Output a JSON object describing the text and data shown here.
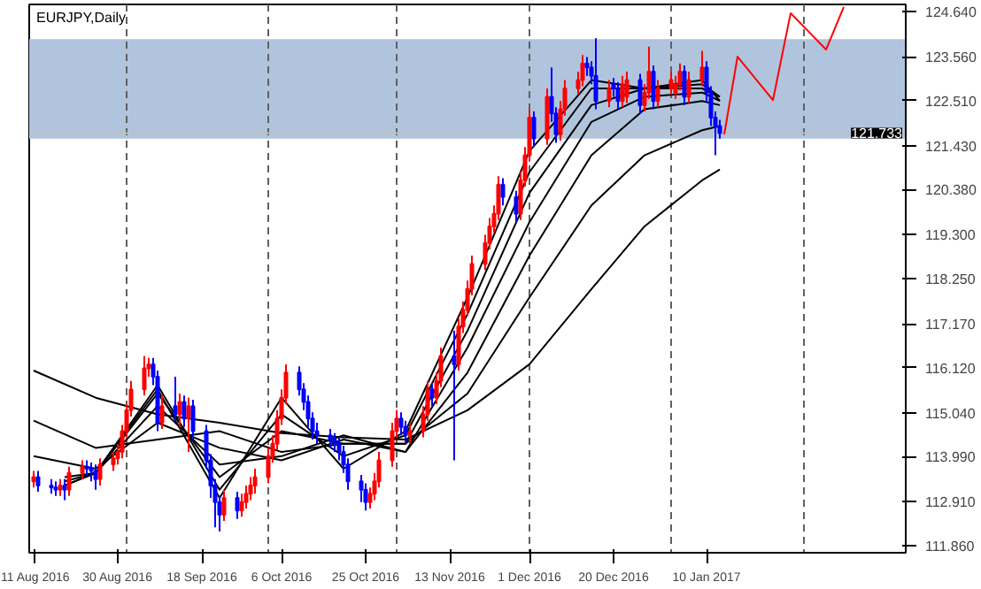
{
  "chart_data": {
    "type": "candlestick",
    "title": "EURJPY,Daily",
    "colors": [
      "#ff0000",
      "#0000ff",
      "#0000ff",
      "#0000ff",
      "#ff0000",
      "#0000ff",
      "#ff0000",
      "#ff0000",
      "#0000ff",
      "#0000ff",
      "#0000ff",
      "#ff0000",
      "#ff0000",
      "#ff0000",
      "#ff0000",
      "#ff0000",
      "#ff0000",
      "#ff0000",
      "#ff0000",
      "#0000ff",
      "#0000ff",
      "#ff0000",
      "#0000ff",
      "#ff0000",
      "#0000ff",
      "#ff0000",
      "#0000ff",
      "#0000ff",
      "#0000ff",
      "#0000ff",
      "#0000ff",
      "#ff0000",
      "#0000ff",
      "#ff0000",
      "#ff0000",
      "#ff0000",
      "#ff0000",
      "#ff0000",
      "#ff0000",
      "#ff0000",
      "#ff0000",
      "#ff0000",
      "#0000ff",
      "#0000ff",
      "#0000ff",
      "#0000ff",
      "#0000ff",
      "#0000ff",
      "#0000ff",
      "#0000ff",
      "#0000ff",
      "#0000ff",
      "#0000ff",
      "#0000ff",
      "#ff0000",
      "#ff0000",
      "#ff0000",
      "#ff0000",
      "#ff0000",
      "#0000ff",
      "#0000ff",
      "#ff0000",
      "#ff0000",
      "#ff0000",
      "#0000ff",
      "#ff0000",
      "#ff0000",
      "#0000ff",
      "#ff0000",
      "#ff0000",
      "#ff0000",
      "#ff0000",
      "#ff0000",
      "#ff0000",
      "#ff0000",
      "#ff0000",
      "#0000ff",
      "#0000ff",
      "#ff0000",
      "#ff0000",
      "#ff0000",
      "#0000ff",
      "#ff0000",
      "#0000ff",
      "#0000ff",
      "#ff0000",
      "#ff0000",
      "#ff0000",
      "#ff0000",
      "#0000ff",
      "#0000ff",
      "#0000ff",
      "#ff0000",
      "#0000ff",
      "#0000ff",
      "#ff0000",
      "#ff0000",
      "#0000ff",
      "#ff0000",
      "#ff0000",
      "#0000ff",
      "#ff0000",
      "#ff0000",
      "#ff0000",
      "#ff0000",
      "#0000ff",
      "#ff0000",
      "#ff0000",
      "#0000ff",
      "#0000ff",
      "#0000ff",
      "#0000ff"
    ],
    "x": [
      "2016-08-11",
      "2016-08-12",
      "2016-08-15",
      "2016-08-16",
      "2016-08-17",
      "2016-08-18",
      "2016-08-19",
      "2016-08-22",
      "2016-08-23",
      "2016-08-24",
      "2016-08-25",
      "2016-08-26",
      "2016-08-29",
      "2016-08-30",
      "2016-08-31",
      "2016-09-01",
      "2016-09-02",
      "2016-09-05",
      "2016-09-06",
      "2016-09-07",
      "2016-09-08",
      "2016-09-09",
      "2016-09-12",
      "2016-09-13",
      "2016-09-14",
      "2016-09-15",
      "2016-09-16",
      "2016-09-19",
      "2016-09-20",
      "2016-09-21",
      "2016-09-22",
      "2016-09-23",
      "2016-09-26",
      "2016-09-27",
      "2016-09-28",
      "2016-09-29",
      "2016-09-30",
      "2016-10-03",
      "2016-10-04",
      "2016-10-05",
      "2016-10-06",
      "2016-10-07",
      "2016-10-10",
      "2016-10-11",
      "2016-10-12",
      "2016-10-13",
      "2016-10-14",
      "2016-10-17",
      "2016-10-18",
      "2016-10-19",
      "2016-10-20",
      "2016-10-21",
      "2016-10-24",
      "2016-10-25",
      "2016-10-26",
      "2016-10-27",
      "2016-10-28",
      "2016-10-31",
      "2016-11-01",
      "2016-11-02",
      "2016-11-03",
      "2016-11-04",
      "2016-11-07",
      "2016-11-08",
      "2016-11-09",
      "2016-11-10",
      "2016-11-11",
      "2016-11-14",
      "2016-11-15",
      "2016-11-16",
      "2016-11-17",
      "2016-11-18",
      "2016-11-21",
      "2016-11-22",
      "2016-11-23",
      "2016-11-24",
      "2016-11-25",
      "2016-11-28",
      "2016-11-29",
      "2016-11-30",
      "2016-12-01",
      "2016-12-02",
      "2016-12-05",
      "2016-12-06",
      "2016-12-07",
      "2016-12-08",
      "2016-12-09",
      "2016-12-12",
      "2016-12-13",
      "2016-12-14",
      "2016-12-15",
      "2016-12-16",
      "2016-12-19",
      "2016-12-20",
      "2016-12-21",
      "2016-12-22",
      "2016-12-23",
      "2016-12-26",
      "2016-12-27",
      "2016-12-28",
      "2016-12-29",
      "2016-12-30",
      "2017-01-02",
      "2017-01-03",
      "2017-01-04",
      "2017-01-05",
      "2017-01-06",
      "2017-01-09",
      "2017-01-10",
      "2017-01-11",
      "2017-01-12",
      "2017-01-13"
    ],
    "ohlc": [
      [
        113.4,
        113.65,
        113.25,
        113.5
      ],
      [
        113.5,
        113.65,
        113.15,
        113.3
      ],
      [
        113.3,
        113.45,
        113.1,
        113.25
      ],
      [
        113.25,
        113.4,
        113.05,
        113.2
      ],
      [
        113.2,
        113.45,
        113.05,
        113.3
      ],
      [
        113.3,
        113.45,
        112.95,
        113.2
      ],
      [
        113.2,
        113.75,
        113.05,
        113.6
      ],
      [
        113.6,
        113.9,
        113.45,
        113.75
      ],
      [
        113.75,
        113.9,
        113.55,
        113.7
      ],
      [
        113.7,
        113.85,
        113.4,
        113.65
      ],
      [
        113.65,
        113.8,
        113.2,
        113.45
      ],
      [
        113.45,
        113.95,
        113.3,
        113.8
      ],
      [
        113.8,
        114.1,
        113.65,
        113.95
      ],
      [
        113.95,
        114.3,
        113.8,
        114.1
      ],
      [
        114.1,
        114.75,
        113.95,
        114.6
      ],
      [
        114.6,
        115.25,
        114.45,
        115.1
      ],
      [
        115.1,
        115.8,
        114.95,
        115.6
      ],
      [
        115.6,
        116.4,
        115.45,
        116.1
      ],
      [
        116.1,
        116.35,
        115.9,
        116.2
      ],
      [
        116.2,
        116.35,
        115.7,
        115.9
      ],
      [
        115.9,
        116.05,
        114.6,
        114.8
      ],
      [
        114.8,
        115.45,
        114.65,
        115.2
      ],
      [
        115.2,
        115.9,
        114.85,
        115.0
      ],
      [
        115.0,
        115.5,
        114.7,
        115.3
      ],
      [
        115.3,
        115.45,
        114.7,
        114.9
      ],
      [
        114.9,
        115.4,
        114.1,
        115.2
      ],
      [
        115.2,
        115.35,
        114.4,
        114.6
      ],
      [
        114.6,
        114.75,
        113.7,
        113.9
      ],
      [
        113.9,
        114.05,
        113.0,
        113.3
      ],
      [
        113.3,
        113.45,
        112.3,
        112.9
      ],
      [
        112.9,
        113.05,
        112.2,
        112.6
      ],
      [
        112.6,
        113.2,
        112.45,
        113.0
      ],
      [
        113.0,
        113.15,
        112.5,
        112.7
      ],
      [
        112.7,
        113.1,
        112.55,
        112.9
      ],
      [
        112.9,
        113.3,
        112.75,
        113.1
      ],
      [
        113.1,
        113.5,
        112.95,
        113.3
      ],
      [
        113.3,
        113.7,
        113.1,
        113.5
      ],
      [
        113.5,
        114.2,
        113.35,
        114.0
      ],
      [
        114.0,
        114.5,
        113.85,
        114.3
      ],
      [
        114.3,
        115.1,
        114.15,
        114.9
      ],
      [
        114.9,
        115.6,
        114.75,
        115.4
      ],
      [
        115.4,
        116.2,
        115.25,
        116.0
      ],
      [
        116.0,
        116.15,
        115.45,
        115.6
      ],
      [
        115.6,
        115.75,
        115.1,
        115.3
      ],
      [
        115.3,
        115.45,
        114.7,
        114.9
      ],
      [
        114.9,
        115.05,
        114.4,
        114.6
      ],
      [
        114.6,
        114.8,
        114.3,
        114.5
      ],
      [
        114.5,
        114.65,
        114.2,
        114.4
      ],
      [
        114.4,
        114.55,
        114.1,
        114.3
      ],
      [
        114.3,
        114.45,
        113.9,
        114.1
      ],
      [
        114.1,
        114.25,
        113.6,
        113.8
      ],
      [
        113.8,
        113.95,
        113.2,
        113.4
      ],
      [
        113.4,
        113.55,
        112.9,
        113.2
      ],
      [
        113.2,
        113.35,
        112.7,
        112.9
      ],
      [
        112.9,
        113.25,
        112.75,
        113.1
      ],
      [
        113.1,
        113.6,
        112.95,
        113.4
      ],
      [
        113.4,
        114.1,
        113.25,
        113.9
      ],
      [
        113.9,
        114.8,
        113.75,
        114.6
      ],
      [
        114.6,
        115.1,
        114.45,
        114.9
      ],
      [
        114.9,
        115.05,
        114.5,
        114.7
      ],
      [
        114.7,
        114.85,
        114.3,
        114.5
      ],
      [
        114.5,
        114.8,
        114.3,
        114.6
      ],
      [
        114.6,
        115.2,
        114.45,
        115.0
      ],
      [
        115.0,
        115.8,
        114.85,
        115.6
      ],
      [
        115.6,
        115.75,
        115.2,
        115.4
      ],
      [
        115.4,
        116.0,
        115.25,
        115.8
      ],
      [
        115.8,
        116.6,
        115.65,
        116.4
      ],
      [
        116.4,
        117.0,
        113.9,
        116.2
      ],
      [
        116.2,
        117.3,
        116.05,
        117.1
      ],
      [
        117.1,
        117.7,
        116.95,
        117.5
      ],
      [
        117.5,
        118.2,
        117.35,
        118.0
      ],
      [
        118.0,
        118.8,
        117.85,
        118.6
      ],
      [
        118.6,
        119.3,
        118.45,
        119.1
      ],
      [
        119.1,
        119.7,
        118.95,
        119.5
      ],
      [
        119.5,
        120.0,
        119.35,
        119.8
      ],
      [
        119.8,
        120.7,
        119.65,
        120.5
      ],
      [
        120.5,
        120.65,
        120.0,
        120.2
      ],
      [
        120.2,
        120.35,
        119.6,
        119.8
      ],
      [
        119.8,
        120.8,
        119.65,
        120.6
      ],
      [
        120.6,
        121.4,
        120.45,
        121.2
      ],
      [
        121.2,
        122.3,
        121.05,
        122.1
      ],
      [
        122.1,
        122.25,
        121.4,
        121.6
      ],
      [
        121.6,
        122.8,
        121.45,
        122.6
      ],
      [
        122.6,
        123.3,
        122.0,
        122.2
      ],
      [
        122.2,
        122.35,
        121.5,
        121.7
      ],
      [
        121.7,
        122.5,
        121.55,
        122.3
      ],
      [
        122.3,
        123.0,
        122.15,
        122.8
      ],
      [
        122.8,
        123.2,
        122.65,
        123.0
      ],
      [
        123.0,
        123.6,
        122.85,
        123.4
      ],
      [
        123.4,
        123.55,
        123.1,
        123.3
      ],
      [
        123.3,
        123.45,
        122.9,
        123.1
      ],
      [
        123.1,
        124.0,
        122.3,
        122.5
      ],
      [
        122.5,
        123.0,
        122.35,
        122.8
      ],
      [
        122.9,
        123.05,
        122.6,
        122.8
      ],
      [
        122.8,
        122.95,
        122.3,
        122.5
      ],
      [
        122.5,
        123.1,
        122.35,
        122.9
      ],
      [
        122.6,
        123.2,
        122.45,
        123.0
      ],
      [
        123.0,
        123.15,
        122.2,
        122.4
      ],
      [
        122.4,
        122.9,
        122.25,
        122.7
      ],
      [
        122.7,
        123.8,
        122.55,
        123.2
      ],
      [
        123.2,
        123.35,
        122.3,
        122.5
      ],
      [
        122.5,
        123.0,
        122.35,
        122.8
      ],
      [
        122.8,
        123.2,
        122.65,
        123.0
      ],
      [
        122.7,
        123.1,
        122.55,
        122.9
      ],
      [
        122.9,
        123.4,
        122.75,
        123.2
      ],
      [
        123.2,
        123.35,
        122.4,
        122.6
      ],
      [
        122.6,
        123.2,
        122.45,
        123.0
      ],
      [
        123.0,
        123.7,
        122.85,
        123.3
      ],
      [
        123.3,
        123.45,
        122.5,
        122.7
      ],
      [
        122.7,
        122.85,
        121.9,
        122.1
      ],
      [
        122.1,
        122.25,
        121.2,
        121.9
      ],
      [
        121.9,
        122.05,
        121.6,
        121.733
      ]
    ],
    "series": [
      {
        "type": "line",
        "color": "#000000",
        "x": [
          "2016-08-11",
          "2016-08-25",
          "2016-09-08",
          "2016-09-22",
          "2016-10-06",
          "2016-10-20",
          "2016-11-03",
          "2016-11-17",
          "2016-12-01",
          "2016-12-15",
          "2016-12-27",
          "2017-01-09",
          "2017-01-13"
        ],
        "values": [
          116.05,
          115.4,
          115.0,
          114.8,
          114.55,
          114.45,
          114.4,
          115.1,
          116.2,
          118.0,
          119.5,
          120.6,
          120.86
        ]
      },
      {
        "type": "line",
        "color": "#000000",
        "x": [
          "2016-08-11",
          "2016-08-25",
          "2016-09-08",
          "2016-09-22",
          "2016-10-06",
          "2016-10-20",
          "2016-11-03",
          "2016-11-17",
          "2016-12-01",
          "2016-12-15",
          "2016-12-27",
          "2017-01-09",
          "2017-01-13"
        ],
        "values": [
          114.85,
          114.2,
          114.4,
          114.6,
          114.1,
          114.3,
          114.3,
          115.5,
          117.8,
          120.0,
          121.2,
          121.8,
          121.9
        ]
      },
      {
        "type": "line",
        "color": "#000000",
        "x": [
          "2016-08-11",
          "2016-08-25",
          "2016-09-08",
          "2016-09-22",
          "2016-10-06",
          "2016-10-20",
          "2016-11-03",
          "2016-11-17",
          "2016-12-01",
          "2016-12-15",
          "2016-12-27",
          "2017-01-09",
          "2017-01-13"
        ],
        "values": [
          114.0,
          113.7,
          114.8,
          114.2,
          113.9,
          114.4,
          114.1,
          116.0,
          118.8,
          121.2,
          122.3,
          122.5,
          122.4
        ]
      },
      {
        "type": "line",
        "color": "#000000",
        "x": [
          "2016-08-18",
          "2016-08-25",
          "2016-09-08",
          "2016-09-22",
          "2016-10-06",
          "2016-10-20",
          "2016-11-03",
          "2016-11-17",
          "2016-12-01",
          "2016-12-15",
          "2016-12-27",
          "2017-01-09",
          "2017-01-13"
        ],
        "values": [
          113.5,
          113.6,
          115.2,
          113.8,
          114.0,
          114.5,
          114.1,
          116.6,
          119.6,
          122.0,
          122.6,
          122.7,
          122.5
        ]
      },
      {
        "type": "line",
        "color": "#000000",
        "x": [
          "2016-08-18",
          "2016-08-25",
          "2016-09-08",
          "2016-09-22",
          "2016-10-06",
          "2016-10-20",
          "2016-11-03",
          "2016-11-17",
          "2016-12-01",
          "2016-12-15",
          "2016-12-27",
          "2017-01-09",
          "2017-01-13"
        ],
        "values": [
          113.4,
          113.6,
          115.5,
          113.5,
          114.6,
          114.3,
          114.3,
          117.0,
          120.3,
          122.4,
          122.8,
          122.8,
          122.6
        ]
      },
      {
        "type": "line",
        "color": "#000000",
        "x": [
          "2016-08-18",
          "2016-08-25",
          "2016-09-08",
          "2016-09-22",
          "2016-10-06",
          "2016-10-20",
          "2016-11-03",
          "2016-11-17",
          "2016-12-01",
          "2016-12-15",
          "2016-12-27",
          "2017-01-09",
          "2017-01-13"
        ],
        "values": [
          113.3,
          113.6,
          115.7,
          113.2,
          115.0,
          114.0,
          114.5,
          117.4,
          120.8,
          122.8,
          122.8,
          122.9,
          122.6
        ]
      },
      {
        "type": "line",
        "color": "#000000",
        "x": [
          "2016-08-18",
          "2016-08-25",
          "2016-09-08",
          "2016-09-22",
          "2016-10-06",
          "2016-10-20",
          "2016-11-03",
          "2016-11-17",
          "2016-12-01",
          "2016-12-15",
          "2016-12-27",
          "2017-01-09",
          "2017-01-13"
        ],
        "values": [
          113.3,
          113.6,
          115.6,
          113.0,
          115.4,
          113.7,
          114.6,
          117.8,
          121.3,
          123.0,
          122.8,
          123.0,
          122.5
        ]
      },
      {
        "type": "line",
        "color": "#ff0000",
        "x": [
          "2017-01-14",
          "2017-01-17",
          "2017-01-25",
          "2017-01-29",
          "2017-02-06",
          "2017-02-10"
        ],
        "values": [
          121.7,
          123.56,
          122.52,
          124.6,
          123.73,
          124.75
        ]
      }
    ],
    "xlim": [
      "2016-08-10",
      "2017-02-24"
    ],
    "xticks": [
      {
        "value": "2016-08-11",
        "label": "11 Aug 2016"
      },
      {
        "value": "2016-08-30",
        "label": "30 Aug 2016"
      },
      {
        "value": "2016-09-18",
        "label": "18 Sep 2016"
      },
      {
        "value": "2016-10-06",
        "label": "6 Oct 2016"
      },
      {
        "value": "2016-10-25",
        "label": "25 Oct 2016"
      },
      {
        "value": "2016-11-13",
        "label": "13 Nov 2016"
      },
      {
        "value": "2016-12-01",
        "label": "1 Dec 2016"
      },
      {
        "value": "2016-12-20",
        "label": "20 Dec 2016"
      },
      {
        "value": "2017-01-10",
        "label": "10 Jan 2017"
      }
    ],
    "ylim": [
      111.69,
      124.81
    ],
    "yticks": [
      {
        "value": 111.86,
        "label": "111.860"
      },
      {
        "value": 112.91,
        "label": "112.910"
      },
      {
        "value": 113.99,
        "label": "113.990"
      },
      {
        "value": 115.04,
        "label": "115.040"
      },
      {
        "value": 116.12,
        "label": "116.120"
      },
      {
        "value": 117.17,
        "label": "117.170"
      },
      {
        "value": 118.25,
        "label": "118.250"
      },
      {
        "value": 119.3,
        "label": "119.300"
      },
      {
        "value": 120.38,
        "label": "120.380"
      },
      {
        "value": 121.43,
        "label": "121.430"
      },
      {
        "value": 122.51,
        "label": "122.510"
      },
      {
        "value": 123.56,
        "label": "123.560"
      },
      {
        "value": 124.64,
        "label": "124.640"
      }
    ],
    "bands": [
      {
        "axis": "y",
        "from": 121.6,
        "to": 123.98,
        "color": "#b0c4de"
      }
    ],
    "ref_lines": [
      {
        "axis": "x",
        "value": "2016-09-01",
        "color": "#606060",
        "line_style": "dashed"
      },
      {
        "axis": "x",
        "value": "2016-10-03",
        "color": "#606060",
        "line_style": "dashed"
      },
      {
        "axis": "x",
        "value": "2016-11-01",
        "color": "#606060",
        "line_style": "dashed"
      },
      {
        "axis": "x",
        "value": "2016-12-01",
        "color": "#606060",
        "line_style": "dashed"
      },
      {
        "axis": "x",
        "value": "2017-01-02",
        "color": "#606060",
        "line_style": "dashed"
      },
      {
        "axis": "x",
        "value": "2017-02-01",
        "color": "#606060",
        "line_style": "dashed"
      },
      {
        "axis": "y",
        "value": 121.733,
        "label": "121.733",
        "color": "#c0c0c0",
        "line_style": "solid"
      }
    ],
    "grid": false,
    "marker": "none",
    "line_style": "solid"
  }
}
